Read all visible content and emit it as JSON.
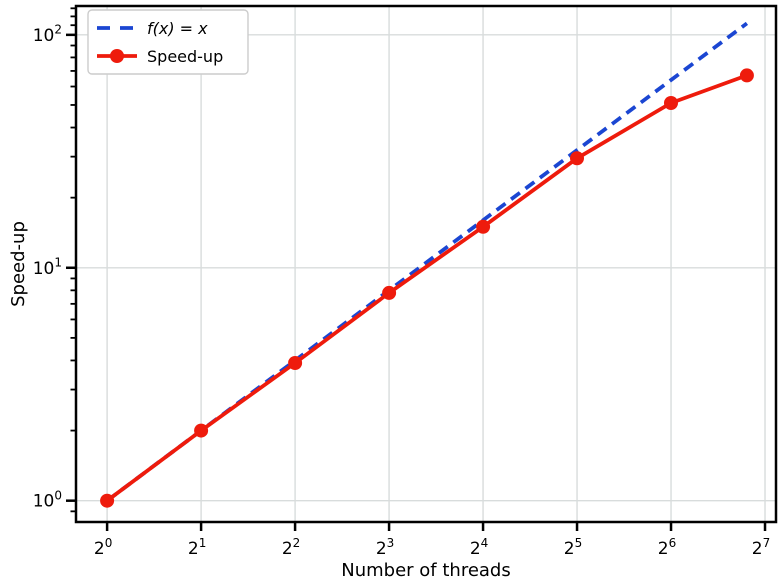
{
  "chart_data": {
    "type": "line",
    "title": "",
    "xlabel": "Number of threads",
    "ylabel": "Speed-up",
    "x_scale": "log2",
    "y_scale": "log10",
    "xlim": [
      0.795,
      138.8
    ],
    "ylim": [
      0.81,
      133.0
    ],
    "grid": "major",
    "grid_color": "#d8dcdc",
    "axis_color": "#000000",
    "legend_position": "upper-left",
    "legend_border_color": "#cccccc",
    "x_ticks": [
      {
        "value": 1,
        "label": "2^0"
      },
      {
        "value": 2,
        "label": "2^1"
      },
      {
        "value": 4,
        "label": "2^2"
      },
      {
        "value": 8,
        "label": "2^3"
      },
      {
        "value": 16,
        "label": "2^4"
      },
      {
        "value": 32,
        "label": "2^5"
      },
      {
        "value": 64,
        "label": "2^6"
      },
      {
        "value": 128,
        "label": "2^7"
      }
    ],
    "y_ticks": [
      {
        "value": 1,
        "label": "10^0"
      },
      {
        "value": 10,
        "label": "10^1"
      },
      {
        "value": 100,
        "label": "10^2"
      }
    ],
    "y_minor_ticks": [
      0.9,
      2,
      3,
      4,
      5,
      6,
      7,
      8,
      9,
      20,
      30,
      40,
      50,
      60,
      70,
      80,
      90,
      110,
      120,
      130
    ],
    "series": [
      {
        "name": "f(x) = x",
        "color": "#1b46d2",
        "line_style": "dashed",
        "marker": "none",
        "x": [
          1,
          112
        ],
        "y": [
          1,
          112
        ]
      },
      {
        "name": "Speed-up",
        "color": "#ee1b0c",
        "line_style": "solid",
        "marker": "circle",
        "x": [
          1,
          2,
          4,
          8,
          16,
          32,
          64,
          112
        ],
        "y": [
          1.0,
          2.0,
          3.9,
          7.8,
          15.0,
          29.5,
          51.0,
          67.0
        ]
      }
    ]
  }
}
